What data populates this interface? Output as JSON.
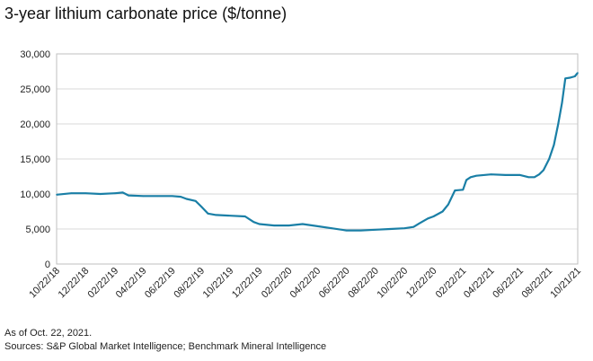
{
  "title": "3-year lithium carbonate price ($/tonne)",
  "footer": {
    "note": "As of Oct. 22, 2021.",
    "sources": "Sources: S&P Global Market Intelligence; Benchmark Mineral Intelligence"
  },
  "colors": {
    "line": "#1a7fa6",
    "grid": "#d9d9d9",
    "frame": "#bfbfbf"
  },
  "chart_data": {
    "type": "line",
    "title": "3-year lithium carbonate price ($/tonne)",
    "xlabel": "",
    "ylabel": "",
    "ylim": [
      0,
      30000
    ],
    "y_ticks": [
      0,
      5000,
      10000,
      15000,
      20000,
      25000,
      30000
    ],
    "y_tick_labels": [
      "0",
      "5,000",
      "10,000",
      "15,000",
      "20,000",
      "25,000",
      "30,000"
    ],
    "x_tick_labels": [
      "10/22/18",
      "12/22/18",
      "02/22/19",
      "04/22/19",
      "06/22/19",
      "08/22/19",
      "10/22/19",
      "12/22/19",
      "02/22/20",
      "04/22/20",
      "06/22/20",
      "08/22/20",
      "10/22/20",
      "12/22/20",
      "02/22/21",
      "04/22/21",
      "06/22/21",
      "08/22/21",
      "10/21/21"
    ],
    "grid": true,
    "legend": "none",
    "series": [
      {
        "x": [
          "10/22/18",
          "11/22/18",
          "12/22/18",
          "01/22/19",
          "02/22/19",
          "03/10/19",
          "03/22/19",
          "04/22/19",
          "05/22/19",
          "06/22/19",
          "07/10/19",
          "07/22/19",
          "08/10/19",
          "08/22/19",
          "09/05/19",
          "09/22/19",
          "10/22/19",
          "11/22/19",
          "12/10/19",
          "12/22/19",
          "01/22/20",
          "02/22/20",
          "03/22/20",
          "04/22/20",
          "05/22/20",
          "06/22/20",
          "07/22/20",
          "08/22/20",
          "09/22/20",
          "10/22/20",
          "11/10/20",
          "11/22/20",
          "12/10/20",
          "12/22/20",
          "01/10/21",
          "01/22/21",
          "02/05/21",
          "02/22/21",
          "03/01/21",
          "03/10/21",
          "03/22/21",
          "04/22/21",
          "05/22/21",
          "06/22/21",
          "07/10/21",
          "07/22/21",
          "08/01/21",
          "08/10/21",
          "08/22/21",
          "09/01/21",
          "09/10/21",
          "09/18/21",
          "09/25/21",
          "10/05/21",
          "10/15/21",
          "10/21/21"
        ],
        "values": [
          9900,
          10100,
          10100,
          10000,
          10100,
          10200,
          9800,
          9700,
          9700,
          9700,
          9600,
          9300,
          9000,
          8200,
          7200,
          7000,
          6900,
          6800,
          6000,
          5700,
          5500,
          5500,
          5700,
          5400,
          5100,
          4800,
          4800,
          4900,
          5000,
          5100,
          5300,
          5800,
          6500,
          6800,
          7500,
          8500,
          10500,
          10600,
          12000,
          12400,
          12600,
          12800,
          12700,
          12700,
          12400,
          12400,
          12800,
          13400,
          15000,
          17000,
          20000,
          23000,
          26500,
          26600,
          26800,
          27300
        ]
      }
    ]
  }
}
